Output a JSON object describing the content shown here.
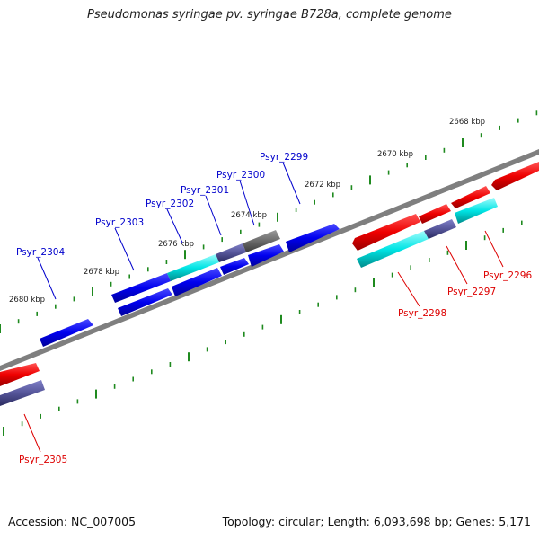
{
  "title": "Pseudomonas syringae pv. syringae B728a, complete genome",
  "accession": "Accession: NC_007005",
  "summary": "Topology: circular; Length: 6,093,698 bp; Genes: 5,171",
  "colors": {
    "backbone": "#7f7f7f",
    "tick": "#1f8a1f",
    "forward_gene": "#0000ee",
    "reverse_gene": "#ee0000",
    "other_gene": "#00e5e5",
    "overlap_gene": "#555599",
    "forward_label": "#0000cc",
    "reverse_label": "#dd0000"
  },
  "ruler_labels": [
    {
      "kbp": 2668,
      "text": "2668 kbp"
    },
    {
      "kbp": 2670,
      "text": "2670 kbp"
    },
    {
      "kbp": 2672,
      "text": "2672 kbp"
    },
    {
      "kbp": 2674,
      "text": "2674 kbp"
    },
    {
      "kbp": 2676,
      "text": "2676 kbp"
    },
    {
      "kbp": 2678,
      "text": "2678 kbp"
    },
    {
      "kbp": 2680,
      "text": "2680 kbp"
    }
  ],
  "gene_labels": {
    "forward": [
      "Psyr_2299",
      "Psyr_2300",
      "Psyr_2301",
      "Psyr_2302",
      "Psyr_2303",
      "Psyr_2304"
    ],
    "reverse": [
      "Psyr_2296",
      "Psyr_2297",
      "Psyr_2298",
      "Psyr_2305"
    ]
  }
}
